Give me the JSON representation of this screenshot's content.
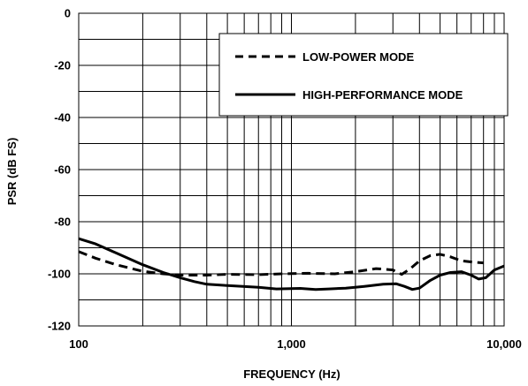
{
  "chart_data": {
    "type": "line",
    "title": "",
    "xlabel": "FREQUENCY (Hz)",
    "ylabel": "PSR (dB FS)",
    "xscale": "log",
    "xlim": [
      100,
      10000
    ],
    "ylim": [
      -120,
      0
    ],
    "x_ticks": [
      100,
      1000,
      10000
    ],
    "x_tick_labels": [
      "100",
      "1,000",
      "10,000"
    ],
    "y_ticks": [
      0,
      -20,
      -40,
      -60,
      -80,
      -100,
      -120
    ],
    "y_tick_labels": [
      "0",
      "-20",
      "-40",
      "-60",
      "-80",
      "-100",
      "-120"
    ],
    "grid": true,
    "legend_position": "top-right",
    "series": [
      {
        "name": "LOW-POWER MODE",
        "style": "dashed",
        "color": "#000000",
        "points": [
          [
            100,
            -91.5
          ],
          [
            120,
            -94
          ],
          [
            150,
            -96.5
          ],
          [
            200,
            -99
          ],
          [
            250,
            -100
          ],
          [
            300,
            -100.5
          ],
          [
            400,
            -100.5
          ],
          [
            500,
            -100.2
          ],
          [
            700,
            -100.3
          ],
          [
            900,
            -100
          ],
          [
            1200,
            -99.8
          ],
          [
            1600,
            -100
          ],
          [
            2000,
            -99.2
          ],
          [
            2500,
            -98
          ],
          [
            3000,
            -98.5
          ],
          [
            3300,
            -100.2
          ],
          [
            3600,
            -98.2
          ],
          [
            4000,
            -95
          ],
          [
            4500,
            -93
          ],
          [
            5000,
            -92.5
          ],
          [
            5600,
            -93.5
          ],
          [
            6300,
            -95
          ],
          [
            7100,
            -95.5
          ],
          [
            8000,
            -95.8
          ]
        ]
      },
      {
        "name": "HIGH-PERFORMANCE MODE",
        "style": "solid",
        "color": "#000000",
        "points": [
          [
            100,
            -86.5
          ],
          [
            120,
            -88.5
          ],
          [
            150,
            -92
          ],
          [
            200,
            -96.5
          ],
          [
            250,
            -99.5
          ],
          [
            300,
            -101.5
          ],
          [
            350,
            -103
          ],
          [
            400,
            -104
          ],
          [
            500,
            -104.5
          ],
          [
            700,
            -105.2
          ],
          [
            850,
            -105.8
          ],
          [
            1100,
            -105.6
          ],
          [
            1300,
            -106
          ],
          [
            1500,
            -105.8
          ],
          [
            1800,
            -105.5
          ],
          [
            2200,
            -104.8
          ],
          [
            2700,
            -104
          ],
          [
            3100,
            -103.8
          ],
          [
            3400,
            -104.8
          ],
          [
            3700,
            -106
          ],
          [
            4000,
            -105.5
          ],
          [
            4500,
            -102.5
          ],
          [
            5000,
            -100.5
          ],
          [
            5600,
            -99.5
          ],
          [
            6300,
            -99.2
          ],
          [
            7000,
            -100.5
          ],
          [
            7600,
            -102
          ],
          [
            8200,
            -101.5
          ],
          [
            9000,
            -98.5
          ],
          [
            10000,
            -97
          ]
        ]
      }
    ]
  },
  "colors": {
    "line": "#000000",
    "grid": "#000000",
    "background": "#ffffff"
  }
}
